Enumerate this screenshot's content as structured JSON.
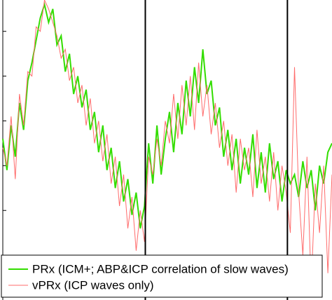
{
  "chart_data": {
    "type": "line",
    "x": [
      0,
      1,
      2,
      3,
      4,
      5,
      6,
      7,
      8,
      9,
      10,
      11,
      12,
      13,
      14,
      15,
      16,
      17,
      18,
      19,
      20,
      21,
      22,
      23,
      24,
      25,
      26,
      27,
      28,
      29,
      30,
      31,
      32,
      33,
      34,
      35,
      36,
      37,
      38,
      39,
      40,
      41,
      42,
      43,
      44,
      45,
      46,
      47,
      48,
      49,
      50,
      51,
      52,
      53,
      54,
      55,
      56,
      57,
      58,
      59,
      60,
      61,
      62,
      63,
      64,
      65,
      66,
      67,
      68,
      69,
      70,
      71,
      72,
      73,
      74,
      75,
      76,
      77,
      78,
      79
    ],
    "series": [
      {
        "name": "PRx (ICM+; ABP&ICP correlation  of slow waves)",
        "color": "#33dd00",
        "values": [
          3.6,
          2.9,
          3.9,
          3.2,
          4.4,
          3.8,
          4.9,
          5.3,
          5.8,
          6.3,
          6.6,
          6.2,
          6.5,
          5.7,
          5.9,
          5.1,
          5.5,
          4.6,
          5.0,
          4.3,
          4.7,
          3.8,
          4.2,
          3.3,
          3.9,
          2.9,
          3.4,
          2.5,
          3.1,
          2.2,
          2.7,
          1.9,
          2.4,
          1.6,
          2.1,
          3.5,
          2.6,
          3.9,
          2.8,
          3.6,
          4.2,
          3.3,
          4.4,
          3.7,
          4.9,
          4.1,
          5.2,
          4.4,
          5.6,
          4.6,
          4.9,
          3.9,
          4.3,
          3.2,
          3.8,
          2.9,
          3.6,
          2.6,
          3.4,
          2.8,
          3.7,
          2.5,
          3.3,
          2.4,
          3.5,
          2.7,
          3.1,
          2.2,
          2.9,
          2.6,
          2.8,
          2.3,
          3.1,
          2.5,
          2.9,
          2.0,
          3.0,
          2.6,
          3.3,
          3.5
        ]
      },
      {
        "name": "vPRx (ICP waves only)",
        "color": "#ff6b6b",
        "values": [
          3.4,
          3.0,
          4.1,
          2.7,
          4.6,
          3.9,
          5.1,
          5.0,
          6.1,
          6.0,
          6.7,
          6.5,
          6.2,
          5.9,
          5.4,
          5.6,
          4.9,
          5.2,
          4.4,
          4.8,
          3.9,
          4.5,
          3.5,
          4.0,
          3.1,
          3.7,
          2.6,
          3.2,
          2.1,
          2.8,
          1.6,
          2.3,
          1.1,
          2.0,
          1.3,
          3.2,
          2.8,
          3.6,
          3.0,
          4.0,
          3.5,
          4.6,
          3.6,
          4.8,
          3.9,
          5.0,
          3.8,
          5.3,
          4.1,
          4.8,
          3.7,
          4.4,
          3.4,
          4.0,
          3.0,
          3.7,
          2.4,
          3.6,
          2.9,
          3.4,
          2.3,
          3.8,
          2.6,
          3.2,
          2.2,
          3.3,
          2.0,
          3.0,
          2.4,
          1.5,
          5.2,
          2.4,
          1.0,
          3.2,
          0.3,
          2.6,
          1.5,
          3.0,
          0.6,
          2.8
        ]
      }
    ],
    "xlim": [
      0,
      79
    ],
    "ylim": [
      0,
      6.7
    ],
    "yticks": [
      1,
      2,
      3,
      4,
      5,
      6
    ],
    "vlines": [
      34.2,
      68.3
    ],
    "legend": "lower left"
  }
}
